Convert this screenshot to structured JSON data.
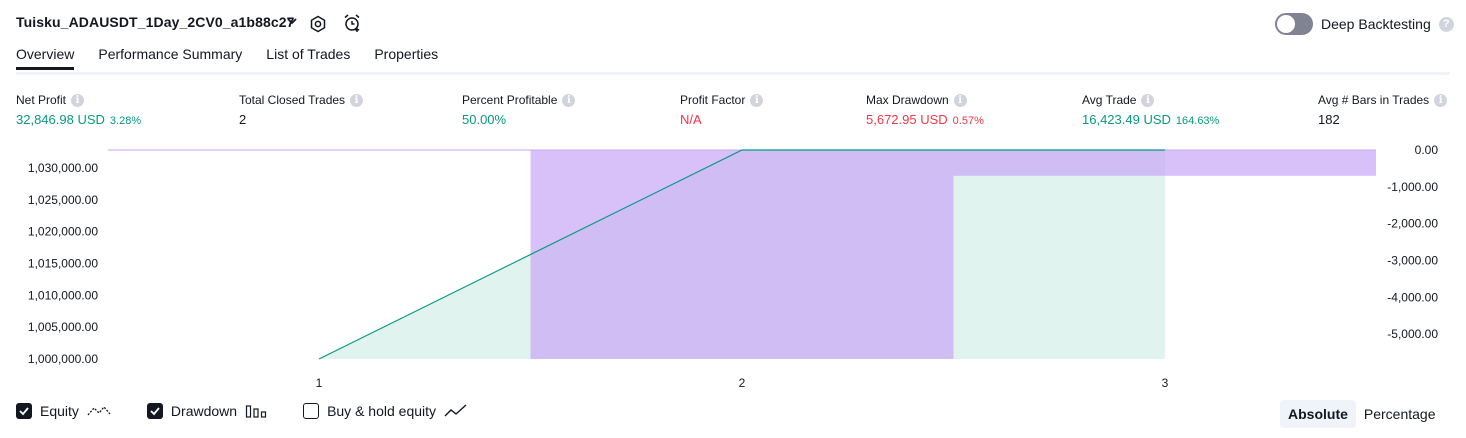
{
  "header": {
    "strategy_name": "Tuisku_ADAUSDT_1Day_2CV0_a1b88c27",
    "icons": [
      "chevron-down-icon",
      "settings-icon",
      "add-alert-icon"
    ],
    "deep_backtesting": {
      "label": "Deep Backtesting",
      "enabled": false,
      "help": "?"
    }
  },
  "tabs": [
    {
      "label": "Overview",
      "active": true
    },
    {
      "label": "Performance Summary",
      "active": false
    },
    {
      "label": "List of Trades",
      "active": false
    },
    {
      "label": "Properties",
      "active": false
    }
  ],
  "metrics": [
    {
      "label": "Net Profit",
      "value": "32,846.98 USD",
      "sub": "3.28%",
      "color": "#089981"
    },
    {
      "label": "Total Closed Trades",
      "value": "2",
      "sub": "",
      "color": "#131722"
    },
    {
      "label": "Percent Profitable",
      "value": "50.00%",
      "sub": "",
      "color": "#089981"
    },
    {
      "label": "Profit Factor",
      "value": "N/A",
      "sub": "",
      "color": "#f23645"
    },
    {
      "label": "Max Drawdown",
      "value": "5,672.95 USD",
      "sub": "0.57%",
      "color": "#f23645"
    },
    {
      "label": "Avg Trade",
      "value": "16,423.49 USD",
      "sub": "164.63%",
      "color": "#089981"
    },
    {
      "label": "Avg # Bars in Trades",
      "value": "182",
      "sub": "",
      "color": "#131722"
    }
  ],
  "info_glyph": "i",
  "chart_data": {
    "type": "area",
    "x_ticks": [
      "1",
      "2",
      "3"
    ],
    "left_axis": {
      "ticks": [
        "1,030,000.00",
        "1,025,000.00",
        "1,020,000.00",
        "1,015,000.00",
        "1,010,000.00",
        "1,005,000.00",
        "1,000,000.00"
      ],
      "range": [
        1000000,
        1032846.98
      ]
    },
    "right_axis": {
      "ticks": [
        "0.00",
        "-1,000.00",
        "-2,000.00",
        "-3,000.00",
        "-4,000.00",
        "-5,000.00"
      ],
      "range": [
        -5672.95,
        0
      ]
    },
    "equity": {
      "x": [
        1,
        2,
        3
      ],
      "y": [
        1000000,
        1032846.98,
        1032846.98
      ],
      "color": "#089981",
      "fill": "#e0f3ee"
    },
    "drawdown": {
      "color": "#c8a5f5",
      "bars": [
        {
          "x_start": 1.5,
          "x_end": 2.5,
          "value": -5672.95
        },
        {
          "x_start": 2.5,
          "x_end": 3.5,
          "value": -700
        }
      ]
    }
  },
  "legend": [
    {
      "label": "Equity",
      "checked": true,
      "icon": "equity-line-icon"
    },
    {
      "label": "Drawdown",
      "checked": true,
      "icon": "drawdown-bars-icon"
    },
    {
      "label": "Buy & hold equity",
      "checked": false,
      "icon": "buy-hold-line-icon"
    }
  ],
  "view_mode": {
    "options": [
      "Absolute",
      "Percentage"
    ],
    "selected": "Absolute"
  }
}
